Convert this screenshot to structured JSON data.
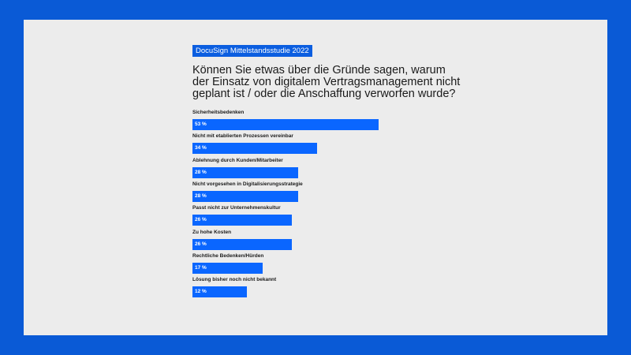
{
  "badge": "DocuSign Mittelstandsstudie 2022",
  "chart_data": {
    "type": "bar",
    "orientation": "horizontal",
    "title": "Können Sie etwas über die Gründe sagen, warum der Einsatz von digitalem Vertragsmanagement nicht geplant ist / oder die Anschaffung verworfen wurde?",
    "categories": [
      "Sicherheitsbedenken",
      "Nicht mit etablierten Prozessen vereinbar",
      "Ablehnung durch Kunden/Mitarbeiter",
      "Nicht vorgesehen in Digitalisierungsstrategie",
      "Passt nicht zur Unternehmenskultur",
      "Zu hohe Kosten",
      "Rechtliche Bedenken/Hürden",
      "Lösung bisher noch nicht bekannt"
    ],
    "values": [
      53,
      34,
      28,
      28,
      26,
      26,
      17,
      12
    ],
    "value_labels": [
      "53 %",
      "34 %",
      "28 %",
      "28 %",
      "26 %",
      "26 %",
      "17 %",
      "12 %"
    ],
    "unit": "%",
    "bar_color": "#0a66ff",
    "grid": false
  }
}
